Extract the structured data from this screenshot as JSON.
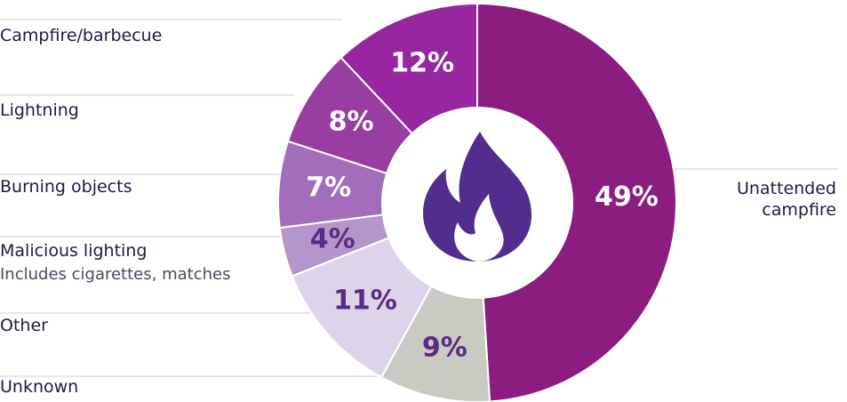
{
  "chart_data": {
    "type": "pie",
    "categories": [
      "Unattended campfire",
      "Unknown",
      "Other",
      "Malicious lighting",
      "Burning objects",
      "Lightning",
      "Campfire/barbecue"
    ],
    "values": [
      49,
      9,
      11,
      4,
      7,
      8,
      12
    ],
    "value_labels": [
      "49%",
      "9%",
      "11%",
      "4%",
      "7%",
      "8%",
      "12%"
    ],
    "colors": [
      "#8c1d80",
      "#c9cac1",
      "#ddd4e9",
      "#b596ca",
      "#a46dbb",
      "#983ea3",
      "#9726a0"
    ],
    "annotations": [
      "Includes cigarettes, matches"
    ]
  }
}
